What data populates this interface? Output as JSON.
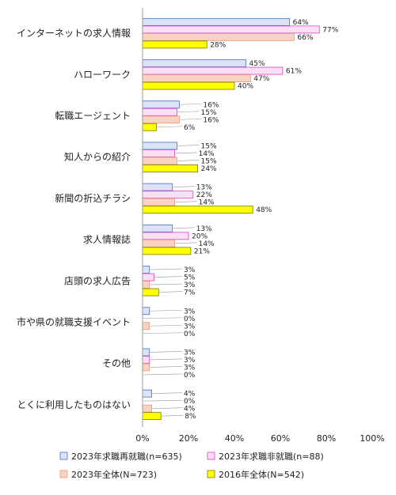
{
  "chart_data": {
    "type": "bar",
    "orientation": "horizontal",
    "categories": [
      "インターネットの求人情報",
      "ハローワーク",
      "転職エージェント",
      "知人からの紹介",
      "新聞の折込チラシ",
      "求人情報誌",
      "店頭の求人広告",
      "市や県の就職支援イベント",
      "その他",
      "とくに利用したものはない"
    ],
    "series": [
      {
        "name": "2023年求職再就職(n=635)",
        "values": [
          64,
          45,
          16,
          15,
          13,
          13,
          3,
          3,
          3,
          4
        ],
        "color": "#4472C4",
        "fill": "#DCE3F6"
      },
      {
        "name": "2023年求職非就職(n=88)",
        "values": [
          77,
          61,
          15,
          14,
          22,
          20,
          5,
          0,
          3,
          0
        ],
        "color": "#E040C8",
        "fill": "#FBE0F4"
      },
      {
        "name": "2023年全体(N=723)",
        "values": [
          66,
          47,
          16,
          15,
          14,
          14,
          3,
          3,
          3,
          4
        ],
        "color": "#E8987A",
        "fill": "#FAD3C2"
      },
      {
        "name": "2016年全体(N=542)",
        "values": [
          28,
          40,
          6,
          24,
          48,
          21,
          7,
          0,
          0,
          8
        ],
        "color": "#7a7a00",
        "fill": "#FFFF00"
      }
    ],
    "value_suffix": "%",
    "xlim": [
      0,
      100
    ],
    "xticks": [
      "0%",
      "20%",
      "40%",
      "60%",
      "80%",
      "100%"
    ],
    "legend_position": "bottom",
    "grid": false
  }
}
